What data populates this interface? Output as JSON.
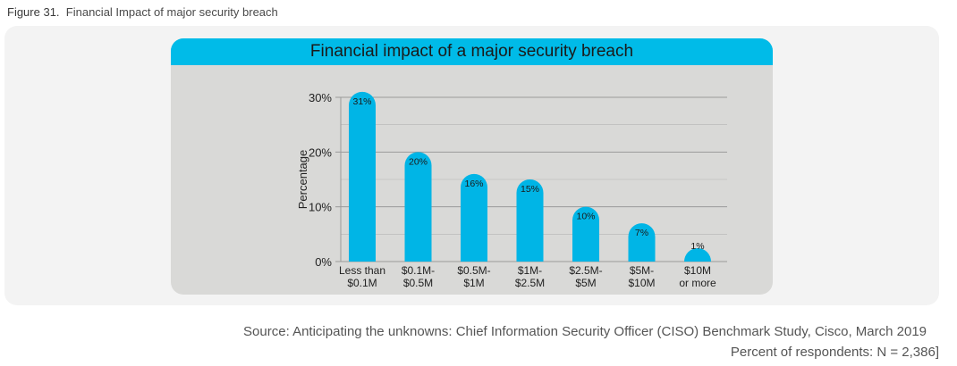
{
  "figure": {
    "number_label": "Figure 31.",
    "caption": "Financial Impact of major security breach"
  },
  "footer": {
    "source": "Source: Anticipating the unknowns: Chief Information Security Officer (CISO) Benchmark Study, Cisco, March 2019",
    "respondents": "Percent of respondents: N = 2,386]"
  },
  "colors": {
    "bar": "#00b5e6",
    "header": "#00bbe8",
    "card": "#d9d9d7",
    "grid": "#9a9a9a"
  },
  "chart_data": {
    "type": "bar",
    "title": "Financial impact of a major security breach",
    "xlabel": "",
    "ylabel": "Percentage",
    "ylim": [
      0,
      30
    ],
    "yticks": [
      "0%",
      "10%",
      "20%",
      "30%"
    ],
    "ytick_values": [
      0,
      10,
      20,
      30
    ],
    "grid": true,
    "categories": [
      [
        "Less than",
        "$0.1M"
      ],
      [
        "$0.1M-",
        "$0.5M"
      ],
      [
        "$0.5M-",
        "$1M"
      ],
      [
        "$1M-",
        "$2.5M"
      ],
      [
        "$2.5M-",
        "$5M"
      ],
      [
        "$5M-",
        "$10M"
      ],
      [
        "$10M",
        "or more"
      ]
    ],
    "values": [
      31,
      20,
      16,
      15,
      10,
      7,
      1
    ],
    "data_labels": [
      "31%",
      "20%",
      "16%",
      "15%",
      "10%",
      "7%",
      "1%"
    ]
  }
}
